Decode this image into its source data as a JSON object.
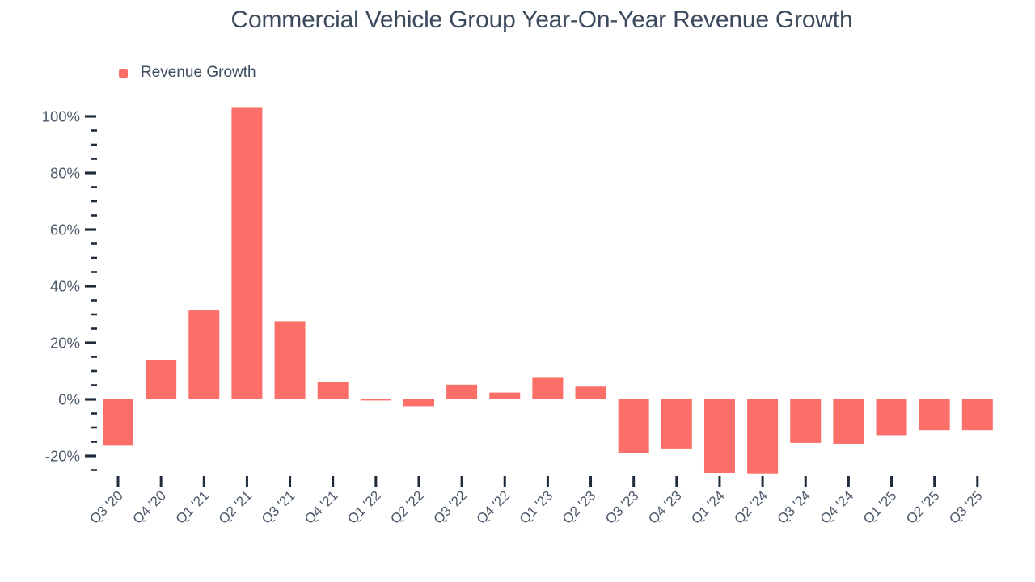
{
  "title": "Commercial Vehicle Group Year-On-Year Revenue Growth",
  "legend": {
    "label": "Revenue Growth"
  },
  "chart_data": {
    "type": "bar",
    "title": "Commercial Vehicle Group Year-On-Year Revenue Growth",
    "legend_label": "Revenue Growth",
    "categories": [
      "Q3 '20",
      "Q4 '20",
      "Q1 '21",
      "Q2 '21",
      "Q3 '21",
      "Q4 '21",
      "Q1 '22",
      "Q2 '22",
      "Q3 '22",
      "Q4 '22",
      "Q1 '23",
      "Q2 '23",
      "Q3 '23",
      "Q4 '23",
      "Q1 '24",
      "Q2 '24",
      "Q3 '24",
      "Q4 '24",
      "Q1 '25",
      "Q2 '25",
      "Q3 '25"
    ],
    "series": [
      {
        "name": "Revenue Growth",
        "values": [
          -16.4,
          14.0,
          31.4,
          103.3,
          27.6,
          6.0,
          -0.4,
          -2.4,
          5.2,
          2.4,
          7.6,
          4.5,
          -18.9,
          -17.4,
          -26.0,
          -26.2,
          -15.4,
          -15.7,
          -12.7,
          -10.9,
          -10.9
        ]
      }
    ],
    "values": [
      -16.4,
      14.0,
      31.4,
      103.3,
      27.6,
      6.0,
      -0.4,
      -2.4,
      5.2,
      2.4,
      7.6,
      4.5,
      -18.9,
      -17.4,
      -26.0,
      -26.2,
      -15.4,
      -15.7,
      -12.7,
      -10.9,
      -10.9
    ],
    "xlabel": "",
    "ylabel": "",
    "ylim": [
      -30,
      105
    ],
    "y_major_ticks": [
      {
        "value": 100,
        "label": "100%"
      },
      {
        "value": 80,
        "label": "80%"
      },
      {
        "value": 60,
        "label": "60%"
      },
      {
        "value": 40,
        "label": "40%"
      },
      {
        "value": 20,
        "label": "20%"
      },
      {
        "value": 0,
        "label": "0%"
      },
      {
        "value": -20,
        "label": "-20%"
      }
    ],
    "y_minor_tick_step": 5,
    "y_minor_tick_range": [
      -25,
      95
    ],
    "grid": false,
    "axis_lines": false,
    "legend_position": "top-left",
    "x_tick_label_rotation": -45,
    "colors": {
      "bar": "#FC6E68",
      "title_text": "#3C4A5E",
      "axis_text": "#4C586A",
      "tick": "#1F2B3A",
      "background": "#FFFFFF"
    }
  }
}
